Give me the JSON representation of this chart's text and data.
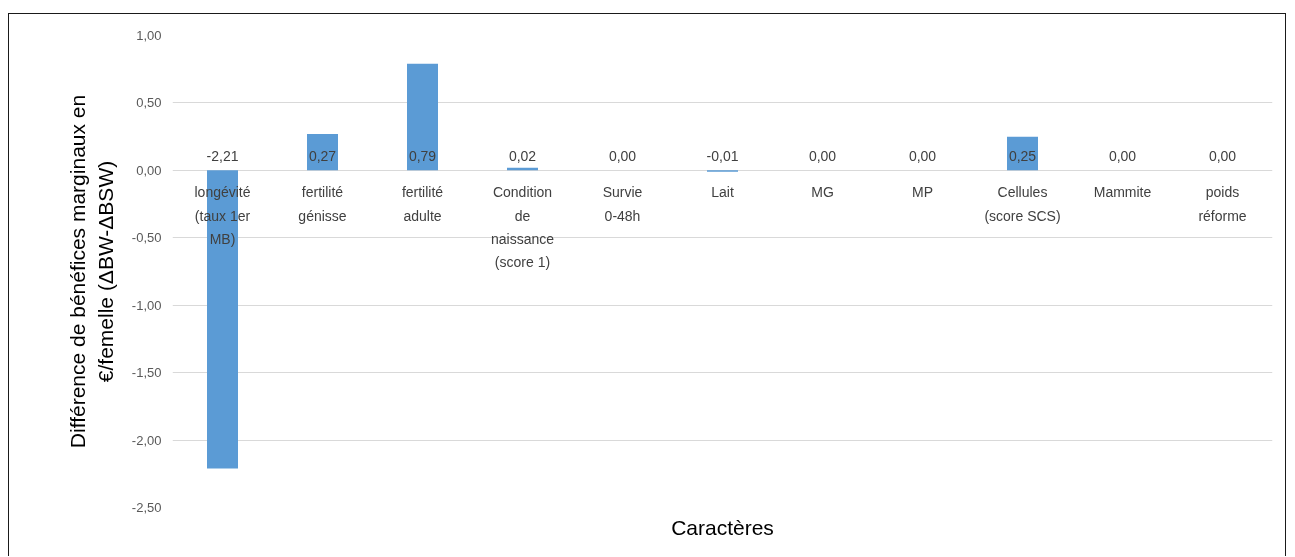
{
  "chart_data": {
    "type": "bar",
    "xlabel": "Caractères",
    "ylabel": "Différence de bénéfices marginaux en €/femelle (ΔBW-ΔBSW)",
    "categories": [
      "longévité (taux 1er MB)",
      "fertilité génisse",
      "fertilité adulte",
      "Condition de naissance (score 1)",
      "Survie 0-48h",
      "Lait",
      "MG",
      "MP",
      "Cellules (score SCS)",
      "Mammite",
      "poids réforme"
    ],
    "values": [
      -2.21,
      0.27,
      0.79,
      0.02,
      0.0,
      -0.01,
      0.0,
      0.0,
      0.25,
      0.0,
      0.0
    ],
    "color": "#5b9bd5",
    "value_labels": [
      "-2,21",
      "0,27",
      "0,79",
      "0,02",
      "0,00",
      "-0,01",
      "0,00",
      "0,00",
      "0,25",
      "0,00",
      "0,00"
    ],
    "ylim": [
      -2.5,
      1
    ],
    "yticks": [
      {
        "value": 1,
        "label": "1,00"
      },
      {
        "value": 0.5,
        "label": "0,50"
      },
      {
        "value": 0,
        "label": "0,00"
      },
      {
        "value": -0.5,
        "label": "-0,50"
      },
      {
        "value": -1,
        "label": "-1,00"
      },
      {
        "value": -1.5,
        "label": "-1,50"
      },
      {
        "value": -2,
        "label": "-2,00"
      },
      {
        "value": -2.5,
        "label": "-2,50"
      }
    ],
    "grid": "y"
  }
}
